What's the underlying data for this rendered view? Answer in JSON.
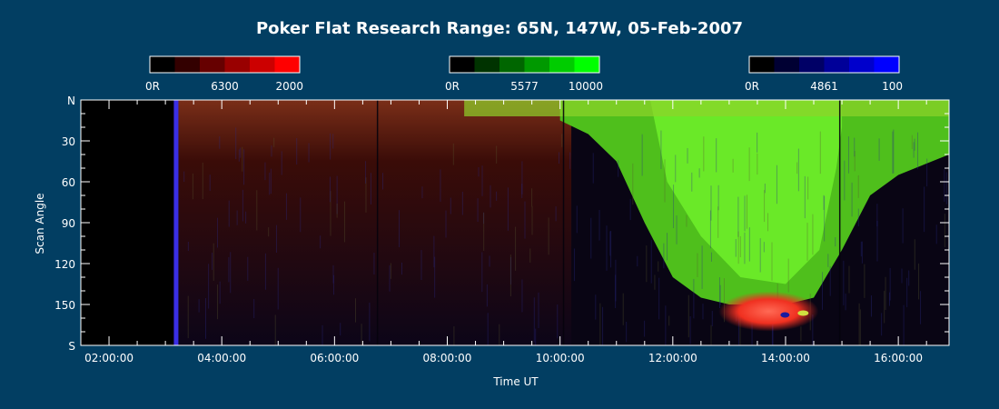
{
  "colors": {
    "background": "#023e62",
    "axis": "#ffffff",
    "text": "#ffffff"
  },
  "chart_data": {
    "type": "heatmap",
    "title": "Poker Flat Research Range: 65N, 147W, 05-Feb-2007",
    "xlabel": "Time UT",
    "ylabel": "Scan Angle",
    "x_range_hours": [
      1.5,
      16.9
    ],
    "x_ticks": [
      {
        "hour": 2,
        "label": "02:00:00"
      },
      {
        "hour": 4,
        "label": "04:00:00"
      },
      {
        "hour": 6,
        "label": "06:00:00"
      },
      {
        "hour": 8,
        "label": "08:00:00"
      },
      {
        "hour": 10,
        "label": "10:00:00"
      },
      {
        "hour": 12,
        "label": "12:00:00"
      },
      {
        "hour": 14,
        "label": "14:00:00"
      },
      {
        "hour": 16,
        "label": "16:00:00"
      }
    ],
    "y_range": [
      0,
      180
    ],
    "y_ticks": [
      {
        "value": 0,
        "label": "N"
      },
      {
        "value": 30,
        "label": "30"
      },
      {
        "value": 60,
        "label": "60"
      },
      {
        "value": 90,
        "label": "90"
      },
      {
        "value": 120,
        "label": "120"
      },
      {
        "value": 150,
        "label": "150"
      },
      {
        "value": 180,
        "label": "S"
      }
    ],
    "colorbars": [
      {
        "name": "6300",
        "min_label": "0R",
        "mid_label": "6300",
        "max_label": "2000",
        "colors": [
          "#000000",
          "#330000",
          "#660000",
          "#990000",
          "#cc0000",
          "#ff0000"
        ]
      },
      {
        "name": "5577",
        "min_label": "0R",
        "mid_label": "5577",
        "max_label": "10000",
        "colors": [
          "#000000",
          "#003300",
          "#006600",
          "#009900",
          "#00cc00",
          "#00ff00"
        ]
      },
      {
        "name": "4861",
        "min_label": "0R",
        "mid_label": "4861",
        "max_label": "100",
        "colors": [
          "#000000",
          "#000033",
          "#000066",
          "#000099",
          "#0000cc",
          "#0000ff"
        ]
      }
    ],
    "green_poleward_boundary": {
      "hours": [
        10.0,
        10.5,
        11.0,
        11.5,
        12.0,
        12.5,
        13.0,
        13.5,
        14.0,
        14.5,
        15.0,
        15.5,
        16.0,
        16.9
      ],
      "angles": [
        15,
        25,
        45,
        90,
        130,
        145,
        150,
        150,
        150,
        145,
        110,
        70,
        55,
        40
      ]
    },
    "annotations": [
      {
        "hour": 13.7,
        "angle": 155,
        "channel": "6300",
        "description": "red patch"
      }
    ]
  }
}
